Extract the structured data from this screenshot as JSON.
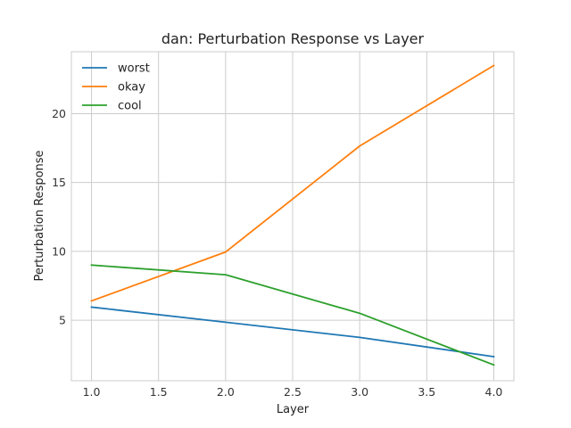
{
  "chart_data": {
    "type": "line",
    "title": "dan: Perturbation Response vs Layer",
    "xlabel": "Layer",
    "ylabel": "Perturbation Response",
    "x": [
      1.0,
      2.0,
      3.0,
      4.0
    ],
    "xlim": [
      0.85,
      4.15
    ],
    "ylim": [
      0.6,
      24.5
    ],
    "xticks": [
      1.0,
      1.5,
      2.0,
      2.5,
      3.0,
      3.5,
      4.0
    ],
    "xtick_labels": [
      "1.0",
      "1.5",
      "2.0",
      "2.5",
      "3.0",
      "3.5",
      "4.0"
    ],
    "yticks": [
      5,
      10,
      15,
      20
    ],
    "ytick_labels": [
      "5",
      "10",
      "15",
      "20"
    ],
    "grid": true,
    "legend_position": "top-left",
    "series": [
      {
        "name": "worst",
        "color": "#1f77b4",
        "values": [
          5.95,
          4.85,
          3.75,
          2.35
        ]
      },
      {
        "name": "okay",
        "color": "#ff7f0e",
        "values": [
          6.4,
          9.95,
          17.65,
          23.5
        ]
      },
      {
        "name": "cool",
        "color": "#2ca02c",
        "values": [
          9.0,
          8.3,
          5.5,
          1.75
        ]
      }
    ]
  }
}
